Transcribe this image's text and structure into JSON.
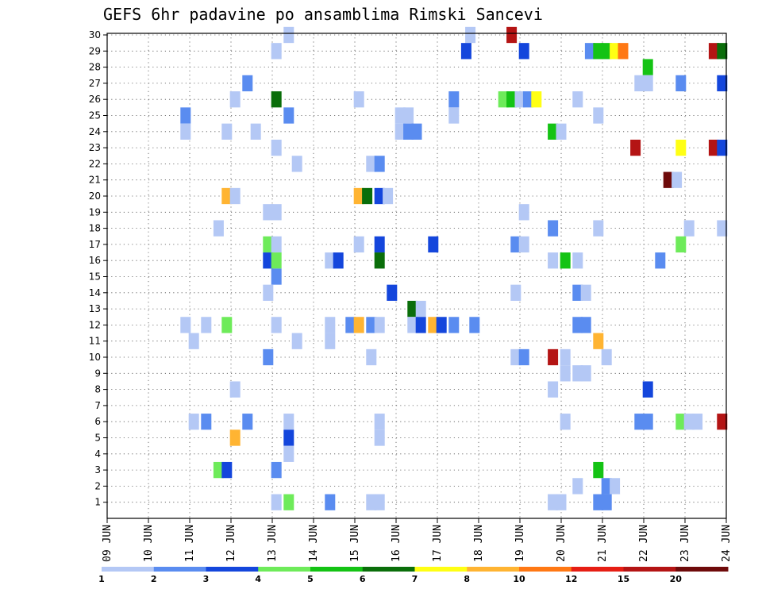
{
  "chart_data": {
    "type": "heatmap",
    "title": "GEFS 6hr padavine po ansamblima Rimski Sancevi",
    "xlabel": "",
    "ylabel": "",
    "x_ticks": [
      "09 JUN",
      "10 JUN",
      "11 JUN",
      "12 JUN",
      "13 JUN",
      "14 JUN",
      "15 JUN",
      "16 JUN",
      "17 JUN",
      "18 JUN",
      "19 JUN",
      "20 JUN",
      "21 JUN",
      "22 JUN",
      "23 JUN",
      "24 JUN"
    ],
    "y_ticks": [
      "1",
      "2",
      "3",
      "4",
      "5",
      "6",
      "7",
      "8",
      "9",
      "10",
      "11",
      "12",
      "13",
      "14",
      "15",
      "16",
      "17",
      "18",
      "19",
      "20",
      "21",
      "22",
      "23",
      "24",
      "25",
      "26",
      "27",
      "28",
      "29",
      "30"
    ],
    "grid": true,
    "legend": "bottom",
    "colorbar": {
      "ticks": [
        "1",
        "2",
        "3",
        "4",
        "5",
        "6",
        "7",
        "8",
        "10",
        "12",
        "15",
        "20"
      ],
      "colors": [
        "#b4c8f5",
        "#5a8cf0",
        "#1446dc",
        "#6eeb5a",
        "#14c314",
        "#0a6e0a",
        "#ffff14",
        "#ffb432",
        "#ff7814",
        "#e61e14",
        "#b41414",
        "#6e0a0a"
      ]
    },
    "cells": [
      [
        30,
        13.4,
        0
      ],
      [
        30,
        17.8,
        0
      ],
      [
        30,
        18.8,
        10
      ],
      [
        29,
        13.1,
        0
      ],
      [
        29,
        17.7,
        2
      ],
      [
        29,
        19.1,
        2
      ],
      [
        29,
        20.7,
        1
      ],
      [
        29,
        20.9,
        4
      ],
      [
        29,
        21.1,
        4
      ],
      [
        29,
        21.3,
        6
      ],
      [
        29,
        21.5,
        8
      ],
      [
        29,
        23.7,
        10
      ],
      [
        29,
        23.9,
        5
      ],
      [
        28,
        22.1,
        4
      ],
      [
        27,
        12.4,
        1
      ],
      [
        27,
        21.9,
        0
      ],
      [
        27,
        22.1,
        0
      ],
      [
        27,
        22.9,
        1
      ],
      [
        27,
        23.9,
        2
      ],
      [
        26,
        12.1,
        0
      ],
      [
        26,
        13.1,
        5
      ],
      [
        26,
        15.1,
        0
      ],
      [
        26,
        17.4,
        1
      ],
      [
        26,
        18.6,
        3
      ],
      [
        26,
        18.8,
        4
      ],
      [
        26,
        19.0,
        0
      ],
      [
        26,
        19.2,
        1
      ],
      [
        26,
        19.4,
        6
      ],
      [
        26,
        20.4,
        0
      ],
      [
        25,
        10.9,
        1
      ],
      [
        25,
        13.4,
        1
      ],
      [
        25,
        16.1,
        0
      ],
      [
        25,
        16.3,
        0
      ],
      [
        25,
        17.4,
        0
      ],
      [
        25,
        20.9,
        0
      ],
      [
        24,
        10.9,
        0
      ],
      [
        24,
        11.9,
        0
      ],
      [
        24,
        12.6,
        0
      ],
      [
        24,
        16.1,
        0
      ],
      [
        24,
        16.3,
        1
      ],
      [
        24,
        16.5,
        1
      ],
      [
        24,
        19.8,
        4
      ],
      [
        24,
        20.0,
        0
      ],
      [
        23,
        13.1,
        0
      ],
      [
        23,
        21.8,
        10
      ],
      [
        23,
        22.9,
        6
      ],
      [
        23,
        23.7,
        10
      ],
      [
        23,
        23.9,
        2
      ],
      [
        22,
        13.6,
        0
      ],
      [
        22,
        15.4,
        0
      ],
      [
        22,
        15.6,
        1
      ],
      [
        21,
        22.6,
        11
      ],
      [
        21,
        22.8,
        0
      ],
      [
        20,
        11.9,
        7
      ],
      [
        20,
        12.1,
        0
      ],
      [
        20,
        15.1,
        7
      ],
      [
        20,
        15.3,
        5
      ],
      [
        20,
        15.6,
        2
      ],
      [
        20,
        15.8,
        0
      ],
      [
        19,
        12.9,
        0
      ],
      [
        19,
        13.1,
        0
      ],
      [
        19,
        19.1,
        0
      ],
      [
        18,
        11.7,
        0
      ],
      [
        18,
        19.8,
        1
      ],
      [
        18,
        20.9,
        0
      ],
      [
        18,
        23.1,
        0
      ],
      [
        18,
        23.9,
        0
      ],
      [
        17,
        12.9,
        3
      ],
      [
        17,
        13.1,
        0
      ],
      [
        17,
        15.1,
        0
      ],
      [
        17,
        15.6,
        2
      ],
      [
        17,
        16.9,
        2
      ],
      [
        17,
        18.9,
        1
      ],
      [
        17,
        19.1,
        0
      ],
      [
        17,
        22.9,
        3
      ],
      [
        16,
        12.9,
        2
      ],
      [
        16,
        13.1,
        3
      ],
      [
        16,
        14.4,
        0
      ],
      [
        16,
        14.6,
        2
      ],
      [
        16,
        15.6,
        5
      ],
      [
        16,
        19.8,
        0
      ],
      [
        16,
        20.1,
        4
      ],
      [
        16,
        20.4,
        0
      ],
      [
        16,
        22.4,
        1
      ],
      [
        15,
        13.1,
        1
      ],
      [
        14,
        12.9,
        0
      ],
      [
        14,
        15.9,
        2
      ],
      [
        14,
        18.9,
        0
      ],
      [
        14,
        20.4,
        1
      ],
      [
        14,
        20.6,
        0
      ],
      [
        13,
        16.4,
        5
      ],
      [
        13,
        16.6,
        0
      ],
      [
        12,
        10.9,
        0
      ],
      [
        12,
        11.4,
        0
      ],
      [
        12,
        11.9,
        3
      ],
      [
        12,
        13.1,
        0
      ],
      [
        12,
        14.4,
        0
      ],
      [
        12,
        14.9,
        1
      ],
      [
        12,
        15.1,
        7
      ],
      [
        12,
        15.4,
        1
      ],
      [
        12,
        15.6,
        0
      ],
      [
        12,
        16.4,
        0
      ],
      [
        12,
        16.6,
        2
      ],
      [
        12,
        16.9,
        7
      ],
      [
        12,
        17.1,
        2
      ],
      [
        12,
        17.4,
        1
      ],
      [
        12,
        17.9,
        1
      ],
      [
        12,
        20.4,
        1
      ],
      [
        12,
        20.6,
        1
      ],
      [
        11,
        11.1,
        0
      ],
      [
        11,
        13.6,
        0
      ],
      [
        11,
        14.4,
        0
      ],
      [
        11,
        20.9,
        7
      ],
      [
        10,
        12.9,
        1
      ],
      [
        10,
        15.4,
        0
      ],
      [
        10,
        18.9,
        0
      ],
      [
        10,
        19.1,
        1
      ],
      [
        10,
        19.8,
        10
      ],
      [
        10,
        20.1,
        0
      ],
      [
        10,
        21.1,
        0
      ],
      [
        9,
        20.1,
        0
      ],
      [
        9,
        20.4,
        0
      ],
      [
        9,
        20.6,
        0
      ],
      [
        8,
        12.1,
        0
      ],
      [
        8,
        19.8,
        0
      ],
      [
        8,
        22.1,
        2
      ],
      [
        6,
        11.1,
        0
      ],
      [
        6,
        11.4,
        1
      ],
      [
        6,
        12.4,
        1
      ],
      [
        6,
        13.4,
        0
      ],
      [
        6,
        15.6,
        0
      ],
      [
        6,
        20.1,
        0
      ],
      [
        6,
        21.9,
        1
      ],
      [
        6,
        22.1,
        1
      ],
      [
        6,
        22.9,
        3
      ],
      [
        6,
        23.1,
        0
      ],
      [
        6,
        23.3,
        0
      ],
      [
        6,
        23.9,
        10
      ],
      [
        5,
        12.1,
        7
      ],
      [
        5,
        13.4,
        2
      ],
      [
        5,
        15.6,
        0
      ],
      [
        4,
        13.4,
        0
      ],
      [
        3,
        11.7,
        3
      ],
      [
        3,
        11.9,
        2
      ],
      [
        3,
        13.1,
        1
      ],
      [
        3,
        20.9,
        4
      ],
      [
        2,
        20.4,
        0
      ],
      [
        2,
        21.1,
        1
      ],
      [
        2,
        21.3,
        0
      ],
      [
        1,
        13.1,
        0
      ],
      [
        1,
        13.4,
        3
      ],
      [
        1,
        14.4,
        1
      ],
      [
        1,
        15.4,
        0
      ],
      [
        1,
        15.6,
        0
      ],
      [
        1,
        19.8,
        0
      ],
      [
        1,
        20.0,
        0
      ],
      [
        1,
        20.9,
        1
      ],
      [
        1,
        21.1,
        1
      ]
    ]
  }
}
